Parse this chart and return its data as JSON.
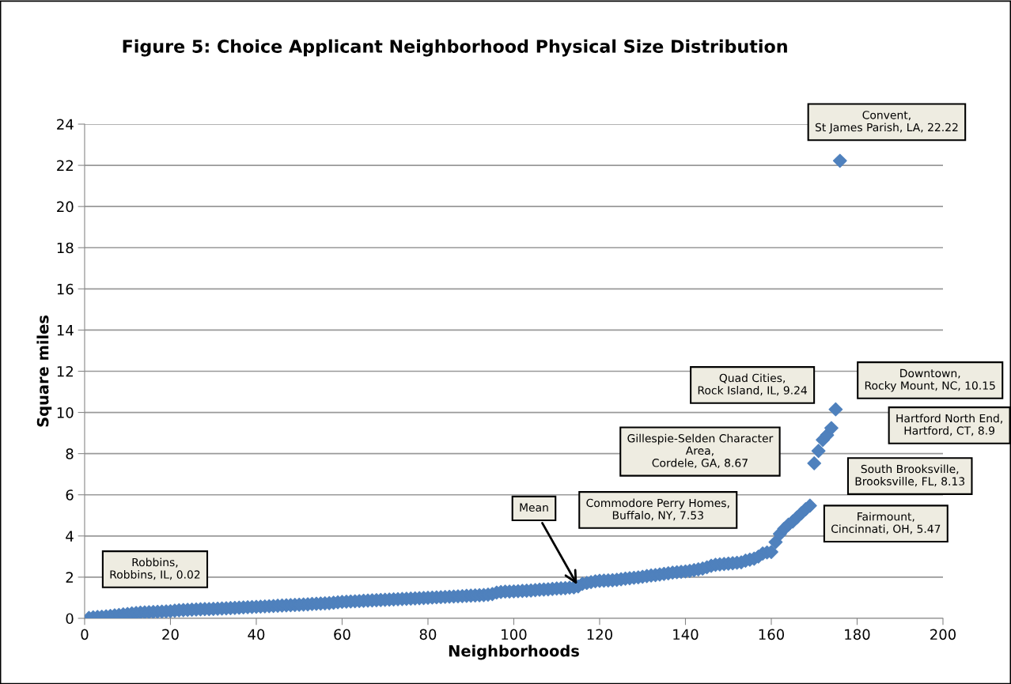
{
  "chart_data": {
    "type": "scatter",
    "title": "Figure 5: Choice Applicant Neighborhood Physical Size Distribution",
    "xlabel": "Neighborhoods",
    "ylabel": "Square miles",
    "x": [
      1,
      2,
      3,
      4,
      5,
      6,
      7,
      8,
      9,
      10,
      11,
      12,
      13,
      14,
      15,
      16,
      17,
      18,
      19,
      20,
      21,
      22,
      23,
      24,
      25,
      26,
      27,
      28,
      29,
      30,
      31,
      32,
      33,
      34,
      35,
      36,
      37,
      38,
      39,
      40,
      41,
      42,
      43,
      44,
      45,
      46,
      47,
      48,
      49,
      50,
      51,
      52,
      53,
      54,
      55,
      56,
      57,
      58,
      59,
      60,
      61,
      62,
      63,
      64,
      65,
      66,
      67,
      68,
      69,
      70,
      71,
      72,
      73,
      74,
      75,
      76,
      77,
      78,
      79,
      80,
      81,
      82,
      83,
      84,
      85,
      86,
      87,
      88,
      89,
      90,
      91,
      92,
      93,
      94,
      95,
      96,
      97,
      98,
      99,
      100,
      101,
      102,
      103,
      104,
      105,
      106,
      107,
      108,
      109,
      110,
      111,
      112,
      113,
      114,
      115,
      116,
      117,
      118,
      119,
      120,
      121,
      122,
      123,
      124,
      125,
      126,
      127,
      128,
      129,
      130,
      131,
      132,
      133,
      134,
      135,
      136,
      137,
      138,
      139,
      140,
      141,
      142,
      143,
      144,
      145,
      146,
      147,
      148,
      149,
      150,
      151,
      152,
      153,
      154,
      155,
      156,
      157,
      158,
      159,
      160,
      161,
      162,
      163,
      164,
      165,
      166,
      167,
      168,
      169,
      170,
      171,
      172,
      173,
      174,
      175,
      176
    ],
    "series": [
      {
        "color": "#4f81bd",
        "values": [
          0.02,
          0.05,
          0.07,
          0.08,
          0.1,
          0.12,
          0.14,
          0.16,
          0.19,
          0.21,
          0.24,
          0.26,
          0.28,
          0.29,
          0.3,
          0.31,
          0.32,
          0.33,
          0.34,
          0.35,
          0.37,
          0.39,
          0.4,
          0.41,
          0.42,
          0.43,
          0.44,
          0.45,
          0.45,
          0.46,
          0.47,
          0.48,
          0.49,
          0.5,
          0.51,
          0.52,
          0.53,
          0.54,
          0.55,
          0.56,
          0.57,
          0.58,
          0.59,
          0.6,
          0.61,
          0.62,
          0.63,
          0.64,
          0.65,
          0.66,
          0.67,
          0.68,
          0.7,
          0.71,
          0.72,
          0.73,
          0.74,
          0.76,
          0.78,
          0.8,
          0.81,
          0.82,
          0.83,
          0.84,
          0.85,
          0.86,
          0.87,
          0.88,
          0.89,
          0.9,
          0.91,
          0.92,
          0.93,
          0.94,
          0.95,
          0.96,
          0.97,
          0.98,
          0.99,
          1.0,
          1.01,
          1.02,
          1.03,
          1.04,
          1.05,
          1.06,
          1.07,
          1.08,
          1.09,
          1.1,
          1.11,
          1.12,
          1.13,
          1.15,
          1.18,
          1.25,
          1.28,
          1.3,
          1.3,
          1.31,
          1.32,
          1.33,
          1.34,
          1.35,
          1.37,
          1.39,
          1.4,
          1.41,
          1.43,
          1.45,
          1.46,
          1.47,
          1.49,
          1.5,
          1.55,
          1.68,
          1.72,
          1.76,
          1.8,
          1.82,
          1.83,
          1.84,
          1.85,
          1.87,
          1.9,
          1.93,
          1.95,
          1.97,
          1.99,
          2.02,
          2.05,
          2.08,
          2.1,
          2.13,
          2.16,
          2.19,
          2.22,
          2.24,
          2.26,
          2.28,
          2.3,
          2.34,
          2.38,
          2.42,
          2.48,
          2.55,
          2.6,
          2.62,
          2.64,
          2.66,
          2.68,
          2.7,
          2.72,
          2.8,
          2.85,
          2.9,
          3.0,
          3.15,
          3.2,
          3.22,
          3.7,
          4.1,
          4.35,
          4.55,
          4.7,
          4.9,
          5.1,
          5.3,
          5.47,
          7.53,
          8.13,
          8.67,
          8.9,
          9.24,
          10.15,
          22.22
        ]
      }
    ],
    "marker": "diamond",
    "grid": "y",
    "xlim": [
      0,
      200
    ],
    "ylim": [
      0,
      24
    ],
    "xticks": [
      0,
      20,
      40,
      60,
      80,
      100,
      120,
      140,
      160,
      180,
      200
    ],
    "yticks": [
      0,
      2,
      4,
      6,
      8,
      10,
      12,
      14,
      16,
      18,
      20,
      22,
      24
    ],
    "annotations": [
      "Robbins,\nRobbins, IL, 0.02",
      {
        "text": "Mean",
        "x": 115,
        "y": 1.55
      },
      "Commodore Perry Homes,\nBuffalo, NY, 7.53",
      "Gillespie-Selden Character\nArea,\nCordele, GA, 8.67",
      "Quad Cities,\nRock Island, IL, 9.24",
      "Downtown,\nRocky Mount, NC, 10.15",
      "Hartford North End,\nHartford, CT, 8.9",
      "South Brooksville,\nBrooksville, FL, 8.13",
      "Fairmount,\nCincinnati, OH, 5.47",
      "Convent,\nSt James Parish, LA, 22.22"
    ]
  }
}
